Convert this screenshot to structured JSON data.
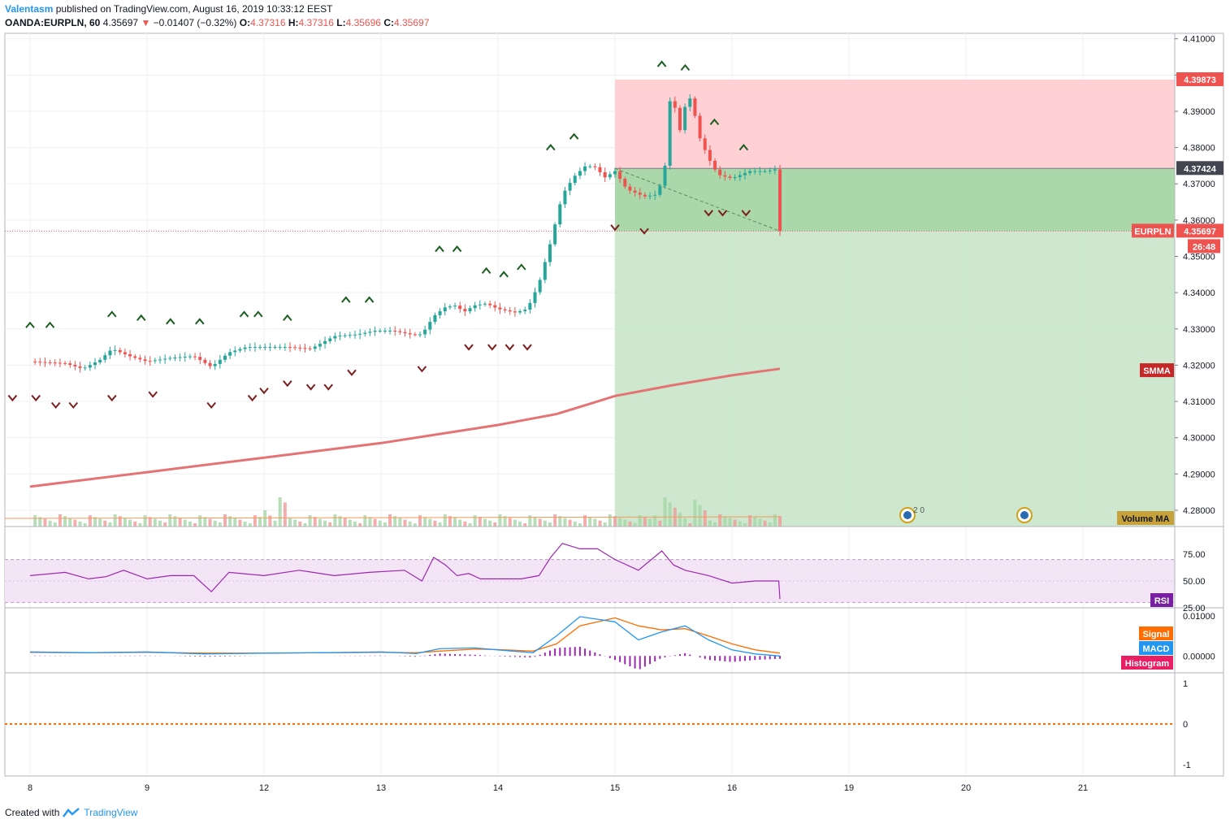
{
  "header": {
    "author": "Valentasm",
    "published": "published on TradingView.com, August 16, 2019 10:33:12 EEST",
    "symbol": "OANDA:EURPLN, 60",
    "last": "4.35697",
    "change": "−0.01407 (−0.32%)",
    "o_label": "O:",
    "o_value": "4.37316",
    "h_label": "H:",
    "h_value": "4.37316",
    "l_label": "L:",
    "l_value": "4.35696",
    "c_label": "C:",
    "c_value": "4.35697"
  },
  "footer": {
    "created_with": "Created with",
    "brand": "TradingView"
  },
  "colors": {
    "up": "#26a69a",
    "down": "#ef5350",
    "stop": "#ef9a9a",
    "target": "#a5d6a7",
    "smma": "#e57373",
    "rsi": "#9c27b0",
    "macd": "#2196f3",
    "signal": "#ff6d00",
    "hist": "#9c27b0"
  },
  "chart_data": [
    {
      "type": "candlestick",
      "name": "EURPLN",
      "ylim": [
        4.2755,
        4.4115
      ],
      "y_ticks": [
        "4.41000",
        "4.40000",
        "4.39000",
        "4.38000",
        "4.37000",
        "4.36000",
        "4.35000",
        "4.34000",
        "4.33000",
        "4.32000",
        "4.31000",
        "4.30000",
        "4.29000",
        "4.28000"
      ],
      "y_tick_values": [
        4.41,
        4.4,
        4.39,
        4.38,
        4.37,
        4.36,
        4.35,
        4.34,
        4.33,
        4.32,
        4.31,
        4.3,
        4.29,
        4.28
      ],
      "x_ticks": [
        "8",
        "9",
        "12",
        "13",
        "14",
        "15",
        "16",
        "19",
        "20",
        "21"
      ],
      "x_tick_index": [
        0,
        1,
        2,
        3,
        4,
        5,
        6,
        7,
        8,
        9
      ],
      "close_path": [
        [
          0,
          4.321
        ],
        [
          0.3,
          4.3205
        ],
        [
          0.45,
          4.319
        ],
        [
          0.6,
          4.3215
        ],
        [
          0.7,
          4.3245
        ],
        [
          0.85,
          4.3225
        ],
        [
          1.0,
          4.321
        ],
        [
          1.2,
          4.322
        ],
        [
          1.4,
          4.3225
        ],
        [
          1.55,
          4.3195
        ],
        [
          1.7,
          4.3235
        ],
        [
          1.85,
          4.325
        ],
        [
          2.0,
          4.325
        ],
        [
          2.2,
          4.325
        ],
        [
          2.4,
          4.3245
        ],
        [
          2.6,
          4.328
        ],
        [
          2.8,
          4.3285
        ],
        [
          2.95,
          4.3295
        ],
        [
          3.1,
          4.3295
        ],
        [
          3.25,
          4.3285
        ],
        [
          3.35,
          4.3285
        ],
        [
          3.45,
          4.3335
        ],
        [
          3.55,
          4.336
        ],
        [
          3.65,
          4.3365
        ],
        [
          3.7,
          4.3345
        ],
        [
          3.8,
          4.3365
        ],
        [
          3.9,
          4.337
        ],
        [
          4.0,
          4.3355
        ],
        [
          4.15,
          4.3345
        ],
        [
          4.25,
          4.3355
        ],
        [
          4.35,
          4.3425
        ],
        [
          4.45,
          4.354
        ],
        [
          4.55,
          4.367
        ],
        [
          4.65,
          4.372
        ],
        [
          4.75,
          4.375
        ],
        [
          4.85,
          4.3745
        ],
        [
          4.9,
          4.3715
        ],
        [
          5.0,
          4.3735
        ],
        [
          5.1,
          4.3685
        ],
        [
          5.25,
          4.3665
        ],
        [
          5.35,
          4.367
        ],
        [
          5.42,
          4.372
        ],
        [
          5.48,
          4.397
        ],
        [
          5.55,
          4.384
        ],
        [
          5.6,
          4.3915
        ],
        [
          5.65,
          4.394
        ],
        [
          5.72,
          4.383
        ],
        [
          5.8,
          4.377
        ],
        [
          5.88,
          4.3725
        ],
        [
          6.0,
          4.3715
        ],
        [
          6.15,
          4.3735
        ],
        [
          6.3,
          4.3735
        ],
        [
          6.4,
          4.3742
        ],
        [
          6.41,
          4.35697
        ]
      ],
      "last_price": 4.35697,
      "last_label": "EURPLN",
      "last_time": "26:48",
      "position": {
        "type": "short",
        "entry": 4.37424,
        "stop": 4.39873,
        "target": 4.2755,
        "start_index": 5.0
      }
    },
    {
      "type": "line",
      "name": "SMMA",
      "x": [
        0,
        1,
        2,
        3,
        4,
        4.5,
        4.8,
        5.0,
        5.5,
        6.0,
        6.41
      ],
      "values": [
        4.2865,
        4.2905,
        4.2945,
        4.2985,
        4.3035,
        4.3065,
        4.3095,
        4.3115,
        4.3145,
        4.3172,
        4.319
      ]
    },
    {
      "type": "bar",
      "name": "Volume MA",
      "note_marks": [
        "2",
        "0"
      ]
    },
    {
      "type": "line",
      "name": "RSI",
      "ylim": [
        25,
        100
      ],
      "y_ticks": [
        "75.00",
        "50.00",
        "25.00"
      ],
      "y_tick_values": [
        75,
        50,
        25
      ],
      "bands": [
        30,
        70
      ],
      "x": [
        0,
        0.3,
        0.5,
        0.65,
        0.8,
        1.0,
        1.2,
        1.4,
        1.55,
        1.7,
        2.0,
        2.3,
        2.6,
        2.9,
        3.2,
        3.35,
        3.45,
        3.55,
        3.65,
        3.75,
        3.85,
        4.0,
        4.2,
        4.35,
        4.45,
        4.55,
        4.7,
        4.85,
        5.0,
        5.2,
        5.4,
        5.5,
        5.6,
        5.8,
        6.0,
        6.2,
        6.4,
        6.41
      ],
      "values": [
        55,
        58,
        52,
        54,
        60,
        52,
        55,
        55,
        40,
        58,
        55,
        60,
        55,
        58,
        60,
        50,
        72,
        65,
        55,
        57,
        52,
        52,
        52,
        55,
        72,
        85,
        80,
        80,
        70,
        60,
        78,
        65,
        60,
        55,
        48,
        50,
        50,
        33
      ]
    },
    {
      "type": "line",
      "name": "MACD",
      "ylim": [
        -0.004,
        0.0118
      ],
      "y_ticks": [
        "0.01000",
        "0.00000"
      ],
      "y_tick_values": [
        0.01,
        0.0
      ],
      "x": [
        0,
        0.5,
        1.0,
        1.5,
        2.0,
        2.5,
        3.0,
        3.3,
        3.5,
        3.8,
        4.0,
        4.3,
        4.5,
        4.7,
        5.0,
        5.2,
        5.4,
        5.6,
        5.8,
        6.0,
        6.2,
        6.41
      ],
      "macd": [
        0.001,
        0.0008,
        0.001,
        0.0005,
        0.0007,
        0.0008,
        0.001,
        0.0006,
        0.0018,
        0.002,
        0.0015,
        0.0008,
        0.005,
        0.0098,
        0.0085,
        0.004,
        0.006,
        0.0075,
        0.004,
        0.0015,
        0.0005,
        0.0
      ],
      "signal": [
        0.0009,
        0.0008,
        0.0009,
        0.0007,
        0.0007,
        0.0008,
        0.0009,
        0.0008,
        0.0012,
        0.0017,
        0.0016,
        0.0012,
        0.003,
        0.0075,
        0.0095,
        0.0075,
        0.0065,
        0.0068,
        0.005,
        0.003,
        0.0015,
        0.0007
      ],
      "labels": [
        "Signal",
        "MACD",
        "Histogram"
      ]
    },
    {
      "type": "line",
      "name": "Empty pane",
      "y_ticks": [
        "1",
        "0",
        "-1"
      ],
      "y_tick_values": [
        1,
        0,
        -1
      ]
    }
  ]
}
